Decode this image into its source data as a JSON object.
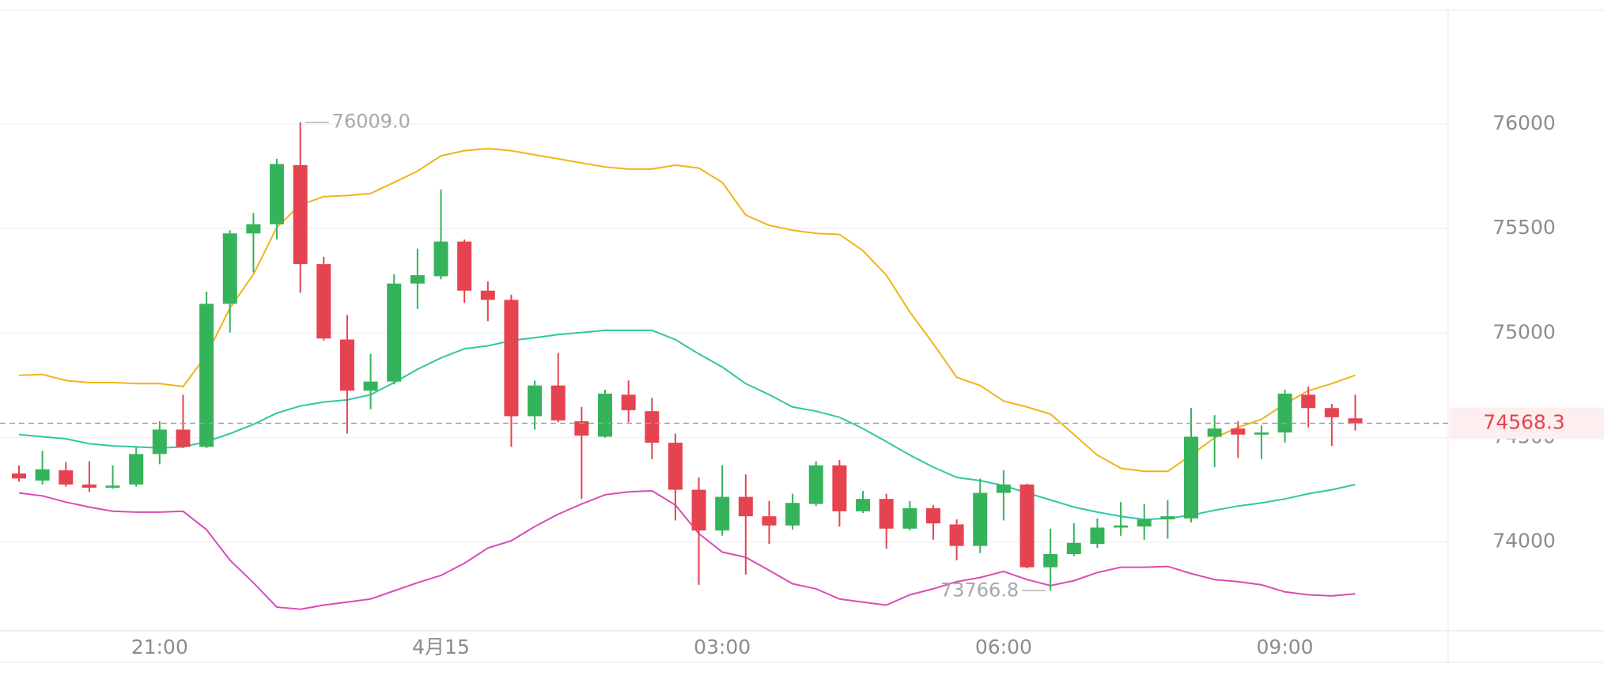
{
  "chart_data": {
    "type": "candlestick",
    "categories": [
      null,
      null,
      null,
      null,
      null,
      null,
      "21:00",
      null,
      null,
      null,
      null,
      null,
      null,
      null,
      null,
      null,
      null,
      null,
      "4月15",
      null,
      null,
      null,
      null,
      null,
      null,
      null,
      null,
      null,
      null,
      null,
      "03:00",
      null,
      null,
      null,
      null,
      null,
      null,
      null,
      null,
      null,
      null,
      null,
      "06:00",
      null,
      null,
      null,
      null,
      null,
      null,
      null,
      null,
      null,
      null,
      null,
      "09:00",
      null,
      null,
      null
    ],
    "open": [
      74328,
      74294,
      74343,
      74275,
      74260,
      74275,
      74421,
      74538,
      74455,
      75140,
      75477,
      75521,
      75804,
      75330,
      74969,
      74724,
      74768,
      75237,
      75272,
      75438,
      75203,
      75159,
      74602,
      74749,
      74578,
      74504,
      74705,
      74626,
      74475,
      74250,
      74055,
      74216,
      74123,
      74079,
      74182,
      74367,
      74147,
      74206,
      74064,
      74162,
      74084,
      73981,
      74235,
      74275,
      73879,
      73942,
      73991,
      74069,
      74074,
      74108,
      74113,
      74504,
      74543,
      74514,
      74524,
      74705,
      74641,
      74592
    ],
    "high": [
      74367,
      74436,
      74382,
      74387,
      74367,
      74455,
      74578,
      74705,
      75198,
      75492,
      75575,
      75834,
      76009,
      75365,
      75086,
      74900,
      75281,
      75404,
      75687,
      75448,
      75247,
      75184,
      74773,
      74905,
      74646,
      74729,
      74773,
      74690,
      74519,
      74309,
      74367,
      74323,
      74196,
      74231,
      74387,
      74392,
      74245,
      74231,
      74196,
      74177,
      74108,
      74304,
      74343,
      74279,
      74064,
      74089,
      74113,
      74191,
      74182,
      74201,
      74641,
      74607,
      74578,
      74558,
      74729,
      74744,
      74661,
      74705
    ],
    "low": [
      74289,
      74275,
      74265,
      74240,
      74255,
      74265,
      74372,
      74450,
      74450,
      75003,
      75291,
      75448,
      75193,
      74964,
      74519,
      74636,
      74754,
      75115,
      75257,
      75145,
      75057,
      74455,
      74538,
      74573,
      74206,
      74499,
      74573,
      74397,
      74103,
      73795,
      74030,
      73844,
      73991,
      74059,
      74172,
      74074,
      74138,
      73967,
      74055,
      74011,
      73913,
      73947,
      74103,
      73874,
      73766.8,
      73932,
      73971,
      74030,
      74011,
      74015,
      74094,
      74358,
      74402,
      74397,
      74475,
      74548,
      74460,
      74534
    ],
    "close": [
      74304,
      74348,
      74275,
      74260,
      74270,
      74421,
      74538,
      74455,
      75140,
      75477,
      75521,
      75809,
      75330,
      74974,
      74724,
      74768,
      75237,
      75277,
      75438,
      75203,
      75159,
      74602,
      74749,
      74582,
      74509,
      74710,
      74631,
      74475,
      74250,
      74055,
      74216,
      74123,
      74079,
      74187,
      74367,
      74147,
      74206,
      74064,
      74162,
      74089,
      73981,
      74235,
      74275,
      73879,
      73942,
      73996,
      74069,
      74079,
      74108,
      74123,
      74504,
      74543,
      74514,
      74524,
      74710,
      74641,
      74597,
      74568.3
    ],
    "up_color": "#35b35a",
    "down_color": "#e5434f",
    "lines": [
      {
        "color": "#f0b419",
        "values": [
          74798,
          74802,
          74773,
          74763,
          74763,
          74758,
          74758,
          74744,
          74895,
          75120,
          75281,
          75506,
          75614,
          75653,
          75658,
          75668,
          75721,
          75775,
          75848,
          75873,
          75883,
          75873,
          75853,
          75834,
          75814,
          75795,
          75785,
          75785,
          75804,
          75790,
          75721,
          75565,
          75516,
          75492,
          75477,
          75472,
          75394,
          75277,
          75101,
          74949,
          74788,
          74749,
          74675,
          74646,
          74612,
          74514,
          74416,
          74353,
          74338,
          74338,
          74416,
          74499,
          74548,
          74587,
          74661,
          74724,
          74758,
          74798
        ]
      },
      {
        "color": "#2ec7a6",
        "values": [
          74514,
          74504,
          74494,
          74470,
          74460,
          74455,
          74450,
          74455,
          74480,
          74519,
          74563,
          74617,
          74651,
          74670,
          74680,
          74705,
          74763,
          74827,
          74881,
          74925,
          74939,
          74964,
          74978,
          74993,
          75003,
          75013,
          75013,
          75013,
          74969,
          74900,
          74837,
          74758,
          74705,
          74646,
          74626,
          74597,
          74543,
          74480,
          74416,
          74358,
          74309,
          74294,
          74270,
          74235,
          74201,
          74167,
          74143,
          74123,
          74108,
          74113,
          74128,
          74152,
          74172,
          74187,
          74206,
          74231,
          74250,
          74275
        ]
      },
      {
        "color": "#db4cb4",
        "values": [
          74235,
          74221,
          74191,
          74167,
          74147,
          74143,
          74143,
          74147,
          74059,
          73913,
          73805,
          73688,
          73678,
          73698,
          73712,
          73727,
          73766,
          73805,
          73840,
          73898,
          73971,
          74006,
          74074,
          74133,
          74182,
          74226,
          74240,
          74245,
          74177,
          74040,
          73952,
          73927,
          73864,
          73800,
          73776,
          73727,
          73712,
          73698,
          73747,
          73776,
          73810,
          73830,
          73859,
          73820,
          73791,
          73815,
          73854,
          73879,
          73879,
          73883,
          73849,
          73820,
          73810,
          73795,
          73761,
          73747,
          73742,
          73752
        ]
      }
    ],
    "annotations": [
      {
        "value": 76009,
        "label": "76009.0"
      },
      {
        "value": 73766.8,
        "label": "73766.8"
      }
    ],
    "current_price": 74568.3,
    "ylim": [
      73575,
      76545
    ],
    "yticks": [
      74000,
      74500,
      75000,
      75500,
      76000
    ],
    "grid": true
  }
}
